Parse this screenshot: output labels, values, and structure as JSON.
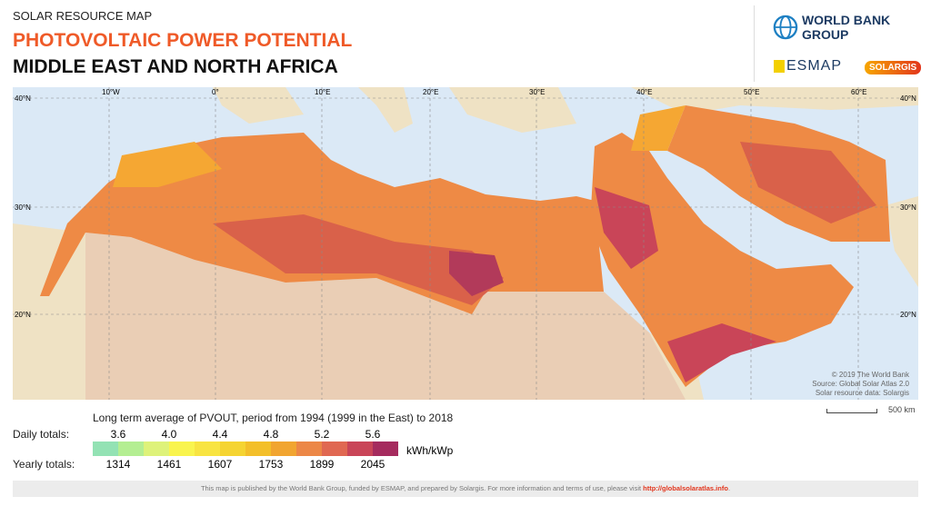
{
  "header": {
    "kicker": "SOLAR RESOURCE MAP",
    "title": "PHOTOVOLTAIC POWER POTENTIAL",
    "region": "MIDDLE EAST AND NORTH AFRICA"
  },
  "logos": {
    "world_bank": "WORLD BANK GROUP",
    "esmap": "ESMAP",
    "solargis": "SOLARGIS"
  },
  "map": {
    "longitude_labels": [
      "10°W",
      "0°",
      "10°E",
      "20°E",
      "30°E",
      "40°E",
      "50°E",
      "60°E"
    ],
    "latitude_labels": [
      "40°N",
      "30°N",
      "20°N"
    ],
    "credits": [
      "© 2019 The World Bank",
      "Source: Global Solar Atlas 2.0",
      "Solar resource data: Solargis"
    ],
    "scale_label": "500 km",
    "colors": {
      "sea": "#dbe9f6",
      "land_outside": "#efe2c4",
      "low": "#f5a733",
      "mid": "#ee8745",
      "high": "#d9534a",
      "peak": "#b23a5a"
    }
  },
  "legend": {
    "title": "Long term average of PVOUT, period from 1994 (1999 in the East) to 2018",
    "daily_label": "Daily totals:",
    "yearly_label": "Yearly totals:",
    "daily_values": [
      "3.6",
      "4.0",
      "4.4",
      "4.8",
      "5.2",
      "5.6"
    ],
    "yearly_values": [
      "1314",
      "1461",
      "1607",
      "1753",
      "1899",
      "2045"
    ],
    "unit": "kWh/kWp",
    "colors": [
      "#93e2b4",
      "#b4ee92",
      "#def27a",
      "#f9f44e",
      "#f8e442",
      "#f5d432",
      "#f3bf2a",
      "#f1a531",
      "#ec8747",
      "#e06852",
      "#c94558",
      "#a52b5e"
    ]
  },
  "footer": {
    "text": "This map is published by the World Bank Group, funded by ESMAP, and prepared by Solargis. For more information and terms of use, please visit ",
    "link": "http://globalsolaratlas.info",
    "end": "."
  }
}
